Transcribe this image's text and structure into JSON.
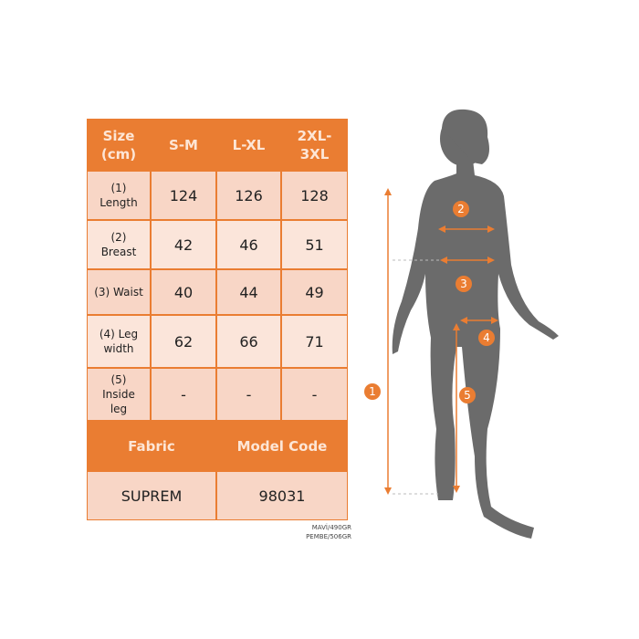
{
  "table": {
    "header": [
      "Size (cm)",
      "S-M",
      "L-XL",
      "2XL-3XL"
    ],
    "header_lines": [
      [
        "Size",
        "(cm)"
      ],
      [
        "S-M"
      ],
      [
        "L-XL"
      ],
      [
        "2XL-",
        "3XL"
      ]
    ],
    "rows": [
      {
        "label": [
          "(1)",
          "Length"
        ],
        "values": [
          "124",
          "126",
          "128"
        ]
      },
      {
        "label": [
          "(2)",
          "Breast"
        ],
        "values": [
          "42",
          "46",
          "51"
        ]
      },
      {
        "label": [
          "(3) Waist"
        ],
        "values": [
          "40",
          "44",
          "49"
        ]
      },
      {
        "label": [
          "(4) Leg",
          "width"
        ],
        "values": [
          "62",
          "66",
          "71"
        ]
      },
      {
        "label": [
          "(5)",
          "Inside",
          "leg"
        ],
        "values": [
          "-",
          "-",
          "-"
        ]
      }
    ],
    "fabric_header": "Fabric",
    "model_code_header": "Model Code",
    "fabric": "SUPREM",
    "model_code": "98031"
  },
  "weights": [
    "MAVİ/490GR",
    "PEMBE/506GR"
  ],
  "markers": [
    "1",
    "2",
    "3",
    "4",
    "5"
  ],
  "colors": {
    "orange": "#ea7d32",
    "cell": "#f8d6c6",
    "cell_alt": "#fbe5da",
    "silhouette": "#6b6b6b"
  }
}
